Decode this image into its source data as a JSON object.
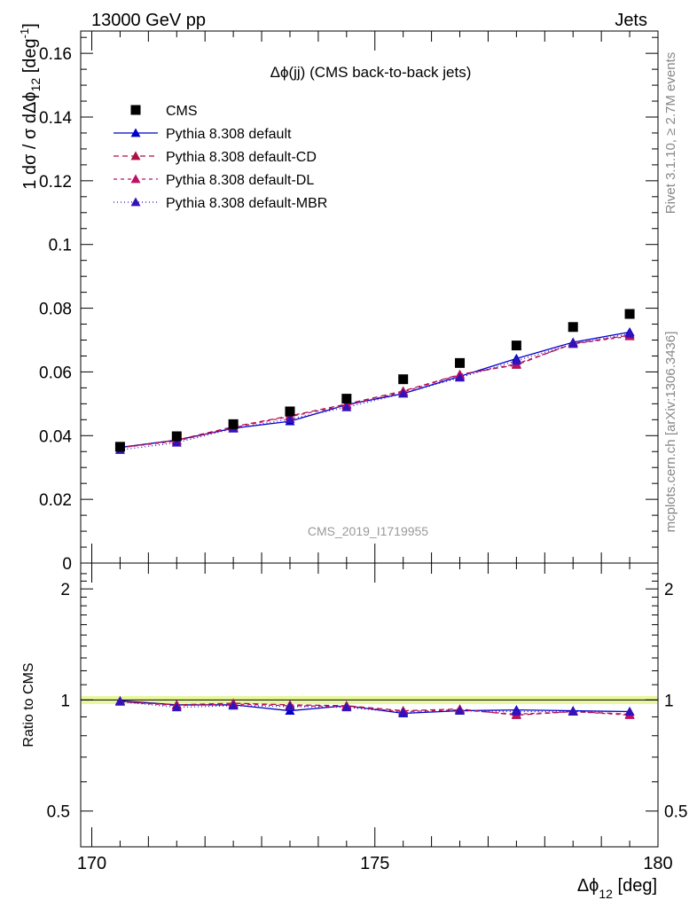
{
  "header": {
    "left": "13000 GeV pp",
    "right": "Jets"
  },
  "side_labels": {
    "rivet": "Rivet 3.1.10, ≥ 2.7M events",
    "mcplots": "mcplots.cern.ch [arXiv:1306.3436]"
  },
  "chart_data": {
    "type": "line",
    "title": "Δϕ(jj) (CMS back-to-back jets)",
    "watermark": "CMS_2019_I1719955",
    "xlabel": "Δϕ",
    "xlabel_sub": "12",
    "xlabel_unit": "[deg]",
    "ylabel_main": "1 dσ / σ dΔϕ",
    "ylabel_sub": "12",
    "ylabel_unit": "[deg",
    "ylabel_unit_sup": "-1",
    "ylabel_unit_close": "]",
    "ylabel_ratio": "Ratio to CMS",
    "xlim": [
      170,
      180
    ],
    "ylim": [
      0,
      0.167
    ],
    "ratio_ylim": [
      0.4,
      2.35
    ],
    "ratio_log": true,
    "xticks": [
      170,
      175,
      180
    ],
    "xtick_labels": [
      "170",
      "175",
      "180"
    ],
    "yticks": [
      0,
      0.02,
      0.04,
      0.06,
      0.08,
      0.1,
      0.12,
      0.14,
      0.16
    ],
    "ytick_labels": [
      "0",
      "0.02",
      "0.04",
      "0.06",
      "0.08",
      "0.1",
      "0.12",
      "0.14",
      "0.16"
    ],
    "ratio_yticks": [
      0.5,
      1,
      2
    ],
    "ratio_ytick_labels": [
      "0.5",
      "1",
      "2"
    ],
    "x": [
      170.5,
      171.5,
      172.5,
      173.5,
      174.5,
      175.5,
      176.5,
      177.5,
      178.5,
      179.5
    ],
    "data": {
      "name": "CMS",
      "color": "#000000",
      "values": [
        0.0365,
        0.0398,
        0.0436,
        0.0476,
        0.0516,
        0.0577,
        0.0628,
        0.0683,
        0.0741,
        0.0782
      ]
    },
    "series": [
      {
        "name": "Pythia 8.308 default",
        "color": "#0000cc",
        "dash": "solid",
        "values": [
          0.0363,
          0.0386,
          0.0423,
          0.0445,
          0.0497,
          0.0532,
          0.0586,
          0.0642,
          0.0693,
          0.0725
        ],
        "ratio": [
          0.995,
          0.97,
          0.97,
          0.935,
          0.965,
          0.92,
          0.935,
          0.94,
          0.935,
          0.93
        ]
      },
      {
        "name": "Pythia 8.308 default-CD",
        "color": "#aa1144",
        "dash": "6,4",
        "values": [
          0.0362,
          0.0386,
          0.0428,
          0.0462,
          0.0499,
          0.054,
          0.0592,
          0.0622,
          0.0689,
          0.0715
        ],
        "ratio": [
          0.99,
          0.97,
          0.98,
          0.97,
          0.965,
          0.935,
          0.945,
          0.91,
          0.93,
          0.915
        ]
      },
      {
        "name": "Pythia 8.308 default-DL",
        "color": "#bb1166",
        "dash": "4,4",
        "values": [
          0.0362,
          0.0383,
          0.0425,
          0.046,
          0.0495,
          0.0537,
          0.0591,
          0.0625,
          0.0688,
          0.0712
        ],
        "ratio": [
          0.99,
          0.965,
          0.975,
          0.965,
          0.96,
          0.93,
          0.94,
          0.915,
          0.93,
          0.91
        ]
      },
      {
        "name": "Pythia 8.308 default-MBR",
        "color": "#3311bb",
        "dash": "1,3",
        "values": [
          0.0355,
          0.0378,
          0.0422,
          0.0452,
          0.0489,
          0.0532,
          0.0582,
          0.0635,
          0.0688,
          0.072
        ],
        "ratio": [
          0.99,
          0.955,
          0.965,
          0.96,
          0.955,
          0.925,
          0.935,
          0.93,
          0.93,
          0.93
        ]
      }
    ]
  }
}
